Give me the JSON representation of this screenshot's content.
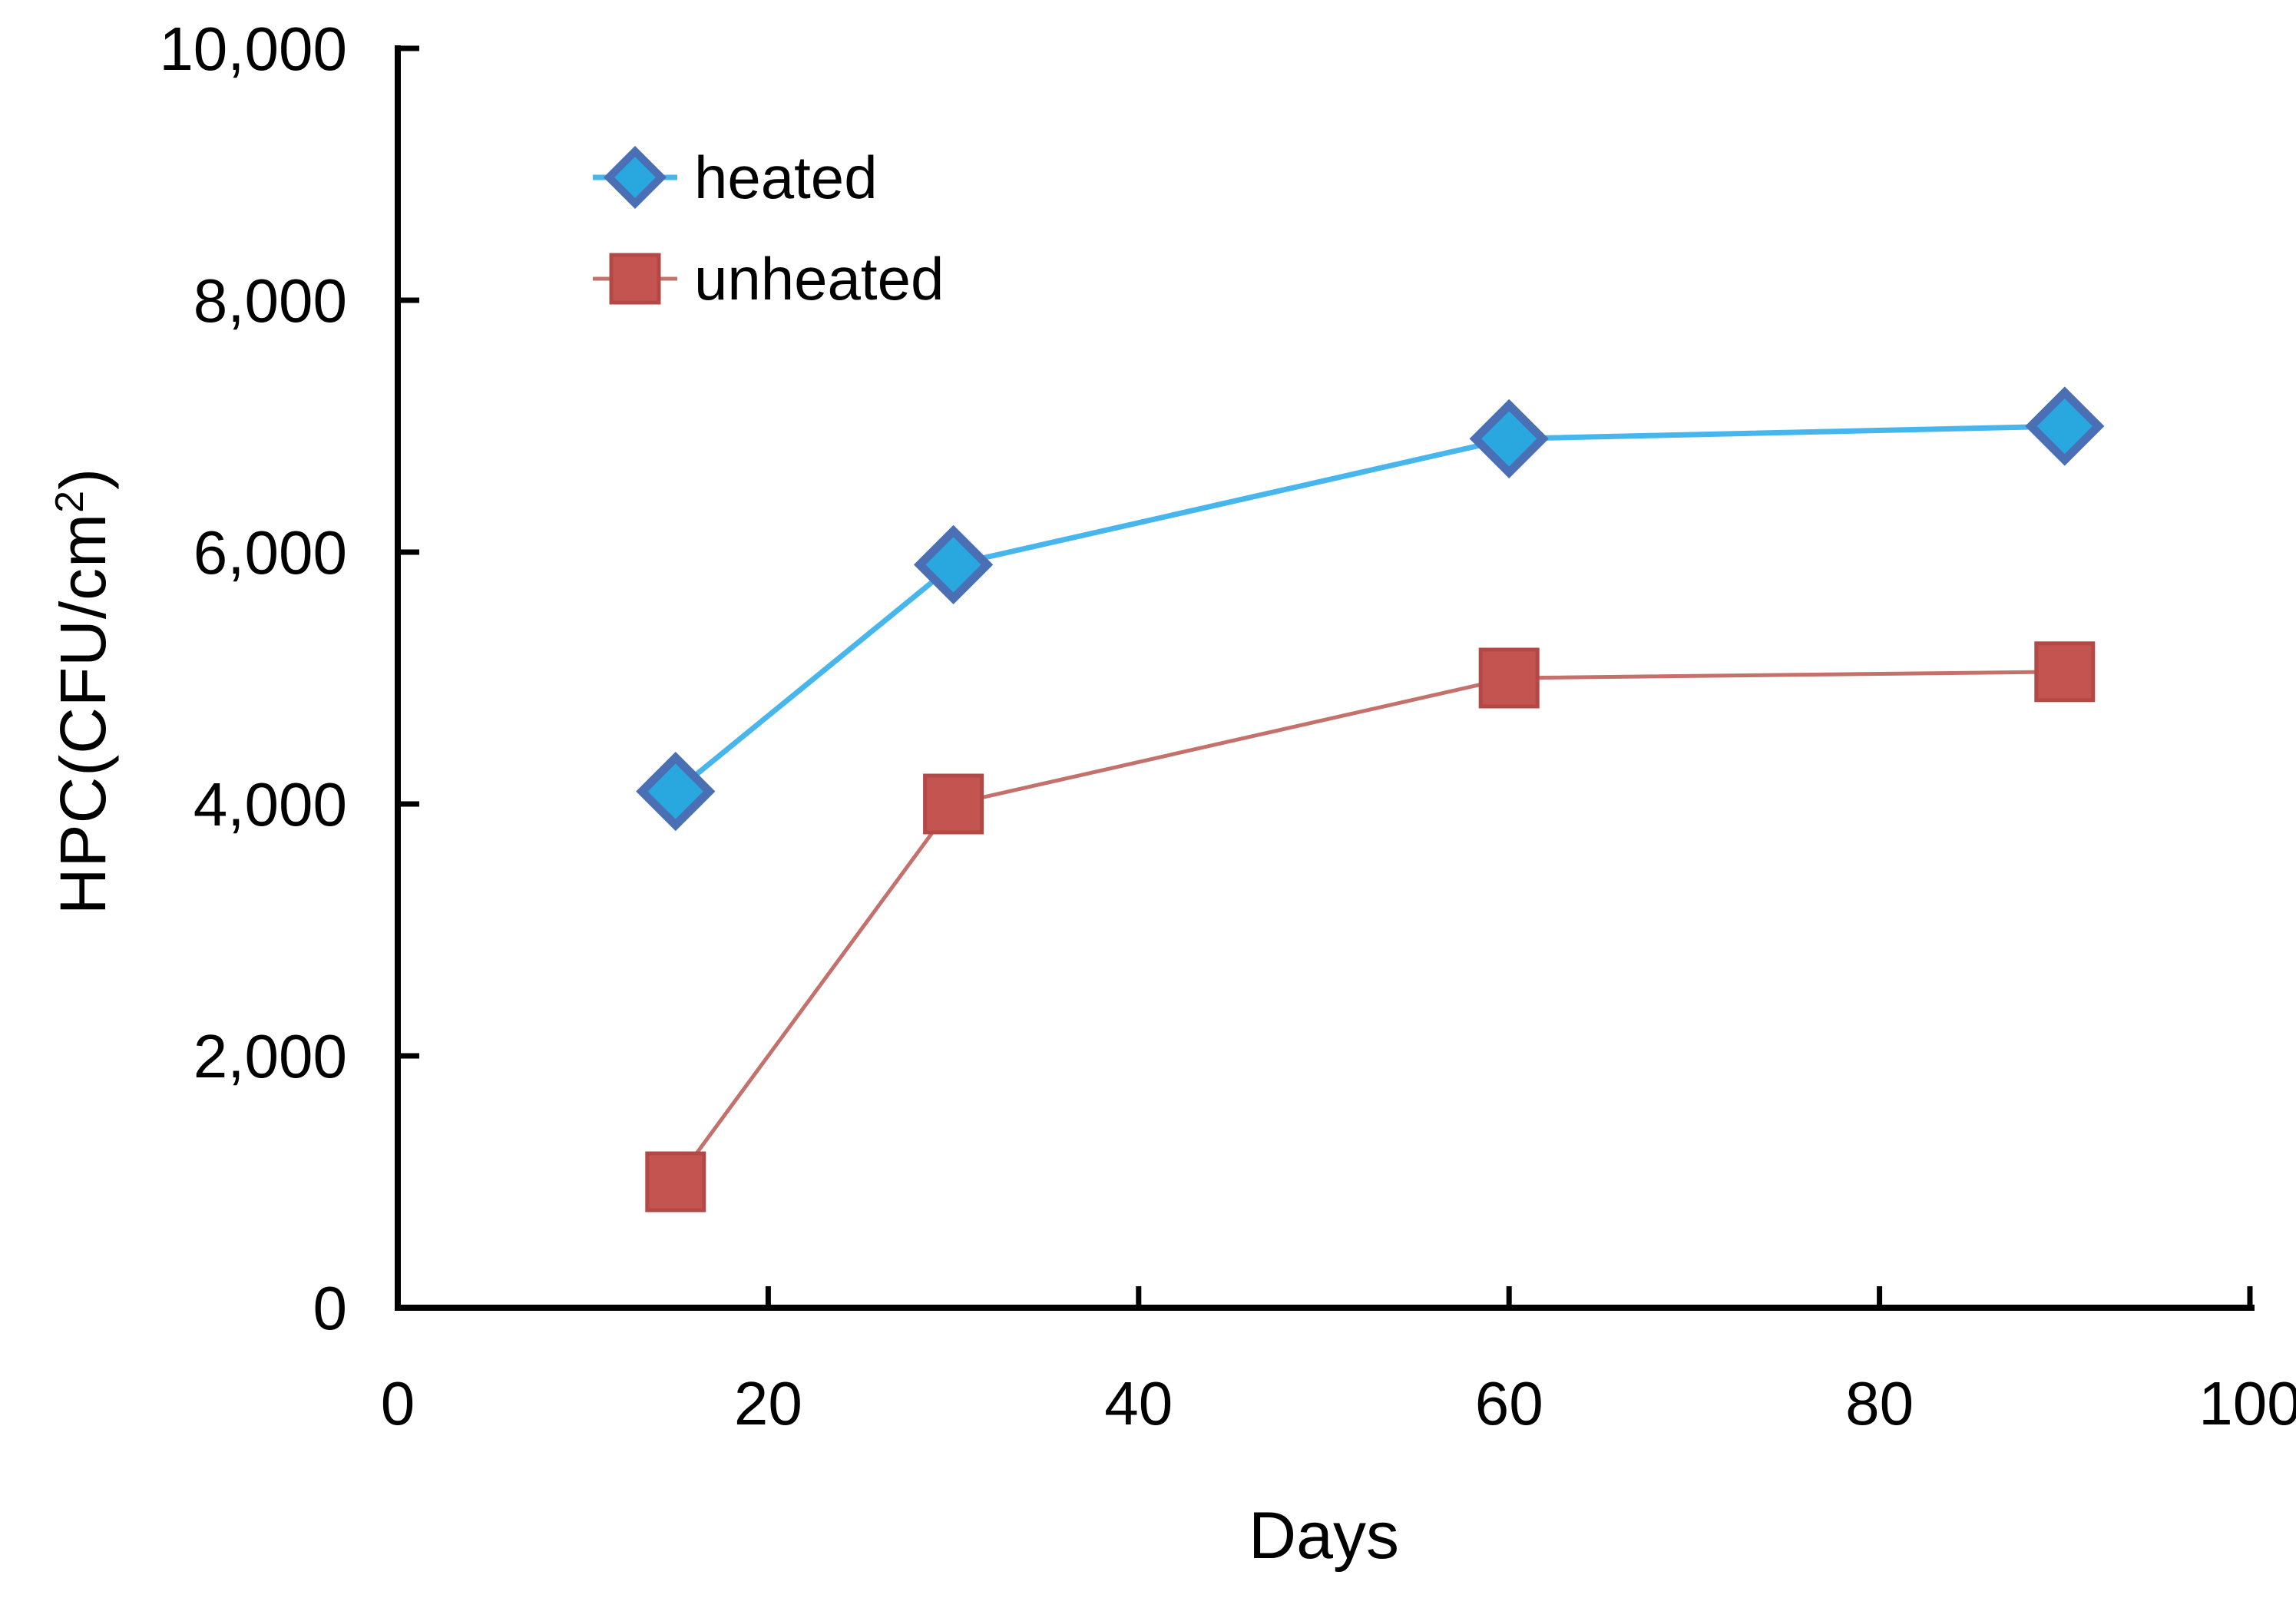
{
  "chart_data": {
    "type": "line",
    "title": "",
    "xlabel": "Days",
    "ylabel": "HPC(CFU/cm²)",
    "ylabel_prefix": "HPC(CFU/cm",
    "ylabel_sup": "2",
    "ylabel_suffix": ")",
    "x": [
      15,
      30,
      60,
      90
    ],
    "series": [
      {
        "name": "heated",
        "marker": "diamond",
        "values": [
          4100,
          5900,
          6900,
          7000
        ],
        "line_color": "#47b6ec",
        "marker_fill": "#29a8e0",
        "marker_stroke": "#4a6fb5"
      },
      {
        "name": "unheated",
        "marker": "square",
        "values": [
          1000,
          4000,
          5000,
          5050
        ],
        "line_color": "#c4716c",
        "marker_fill": "#c4544f",
        "marker_stroke": "#b34946"
      }
    ],
    "xlim": [
      0,
      100
    ],
    "ylim": [
      0,
      10000
    ],
    "xticks": [
      {
        "value": 0,
        "label": "0"
      },
      {
        "value": 20,
        "label": "20"
      },
      {
        "value": 40,
        "label": "40"
      },
      {
        "value": 60,
        "label": "60"
      },
      {
        "value": 80,
        "label": "80"
      },
      {
        "value": 100,
        "label": "100"
      }
    ],
    "yticks": [
      {
        "value": 0,
        "label": "0"
      },
      {
        "value": 2000,
        "label": "2,000"
      },
      {
        "value": 4000,
        "label": "4,000"
      },
      {
        "value": 6000,
        "label": "6,000"
      },
      {
        "value": 8000,
        "label": "8,000"
      },
      {
        "value": 10000,
        "label": "10,000"
      }
    ],
    "grid": false,
    "legend_position": "top-left-inside",
    "axis_color": "#000000",
    "background_color": "#ffffff"
  }
}
